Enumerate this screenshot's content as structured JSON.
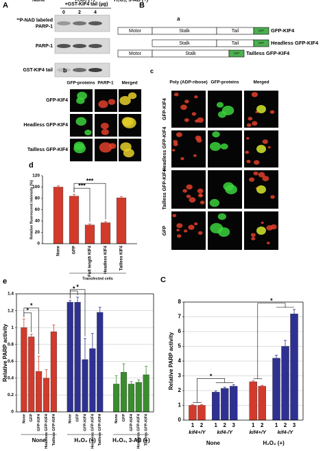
{
  "panels": {
    "A": {
      "label": "A",
      "header": "+GST-KIF4 tail (μg)",
      "doses": [
        "0",
        "2",
        "4"
      ],
      "rows": [
        [
          "³²P-NAD labeled",
          "PARP-1"
        ],
        [
          "PARP-1"
        ],
        [
          "GST-KIF4 tail"
        ]
      ]
    },
    "B": {
      "label": "B",
      "sub": "a",
      "constructs": [
        {
          "domains": [
            "Motor",
            "Stalk",
            "Tail",
            "GFP"
          ],
          "name": "GFP-KIF4"
        },
        {
          "domains": [
            "Stalk",
            "Tail",
            "GFP"
          ],
          "name": "Headless GFP-KIF4"
        },
        {
          "domains": [
            "Motor",
            "Stalk",
            "GFP"
          ],
          "name": "Tailless GFP-KIF4"
        }
      ]
    },
    "b": {
      "label": "b",
      "columns": [
        "GFP-proteins",
        "PARP-1",
        "Merged"
      ],
      "rows": [
        "GFP-KIF4",
        "Headless GFP-KIF4",
        "Tailless GFP-KIF4"
      ]
    },
    "c": {
      "label": "c",
      "columns": [
        "Poly (ADP-ribose)",
        "GFP-proteins",
        "Merged"
      ],
      "rows": [
        "GFP-KIF4",
        "Headless GFP-KIF4",
        "Tailless GFP-KIF4",
        "GFP"
      ]
    }
  },
  "chart_data": [
    {
      "type": "bar",
      "label": "d",
      "ylabel": "Relative fluorescent intensity (%)",
      "ylim": [
        0,
        120
      ],
      "yticks": [
        0,
        20,
        40,
        60,
        80,
        100,
        120
      ],
      "grid": false,
      "groups": [
        {
          "color": "#d23a2b",
          "categories": [
            "None",
            "GFP",
            "Full length KIF4",
            "Headless KIF4",
            "Tailless KIF4"
          ],
          "values": [
            100,
            84,
            33,
            37,
            81
          ],
          "errors": [
            2,
            3,
            2,
            2,
            2
          ]
        }
      ],
      "bracket": {
        "label": "Transfected cells",
        "from": 1,
        "to": 4
      },
      "significance": [
        {
          "text": "***",
          "from": [
            1,
            1
          ],
          "to": [
            2,
            2
          ]
        },
        {
          "text": "***",
          "from": [
            1,
            1
          ],
          "to": [
            3,
            3
          ]
        }
      ]
    },
    {
      "type": "bar",
      "label": "e",
      "ylabel": "Relative PARP activity",
      "ylim": [
        0,
        1.4
      ],
      "yticks": [
        0,
        0.2,
        0.4,
        0.6,
        0.8,
        1,
        1.2,
        1.4
      ],
      "grid": true,
      "groups": [
        {
          "name": "None",
          "color": "#d23a2b",
          "categories": [
            "None",
            "GFP",
            "GFP-KIF4",
            "Headless GFP-KIF4",
            "Tailless GFP-KIF4"
          ],
          "values": [
            1.0,
            0.89,
            0.48,
            0.4,
            0.95
          ],
          "errors": [
            0.1,
            0.03,
            0.18,
            0.1,
            0.08
          ]
        },
        {
          "name": "H₂O₂ (+)",
          "color": "#2e3192",
          "categories": [
            "None",
            "GFP",
            "GFP-KIF4",
            "Headless GFP-KIF4",
            "Tailless GFP-KIF4"
          ],
          "values": [
            1.3,
            1.3,
            0.62,
            0.75,
            1.18
          ],
          "errors": [
            0.02,
            0.06,
            0.25,
            0.18,
            0.06
          ]
        },
        {
          "name": "H₂O₂, 3-AB (+)",
          "color": "#3a8d2e",
          "categories": [
            "None",
            "GFP",
            "GFP-KIF4",
            "Headless GFP-KIF4",
            "Tailless GFP-KIF4"
          ],
          "values": [
            0.33,
            0.47,
            0.33,
            0.35,
            0.44
          ],
          "errors": [
            0.1,
            0.1,
            0.03,
            0.03,
            0.1
          ]
        }
      ],
      "significance": [
        {
          "text": "*",
          "from": [
            0,
            0
          ],
          "to": [
            1,
            1
          ]
        },
        {
          "text": "*",
          "from": [
            0,
            0
          ],
          "to": [
            2,
            2
          ]
        },
        {
          "text": "*",
          "from": [
            5,
            5
          ],
          "to": [
            6,
            6
          ]
        },
        {
          "text": "*",
          "from": [
            5,
            5
          ],
          "to": [
            7,
            7
          ]
        }
      ]
    },
    {
      "type": "bar",
      "label": "C",
      "ylabel": "Relative PARP activity",
      "ylim": [
        0,
        8
      ],
      "yticks": [
        0,
        1,
        2,
        3,
        4,
        5,
        6,
        7,
        8
      ],
      "grid": true,
      "groups": [
        {
          "name": "None",
          "subgroups": [
            {
              "name": "kif4+/Y",
              "color": "#d23a2b",
              "categories": [
                "1",
                "2"
              ],
              "values": [
                1.0,
                1.0
              ],
              "errors": [
                0.05,
                0.05
              ]
            },
            {
              "name": "kif4-/Y",
              "color": "#2e3192",
              "categories": [
                "1",
                "2",
                "3"
              ],
              "values": [
                1.9,
                2.15,
                2.3
              ],
              "errors": [
                0.08,
                0.08,
                0.1
              ]
            }
          ]
        },
        {
          "name": "H₂O₂ (+)",
          "subgroups": [
            {
              "name": "kif4+/Y",
              "color": "#d23a2b",
              "categories": [
                "1",
                "2"
              ],
              "values": [
                2.6,
                2.3
              ],
              "errors": [
                0.06,
                0.06
              ]
            },
            {
              "name": "kif4-/Y",
              "color": "#2e3192",
              "categories": [
                "1",
                "2",
                "3"
              ],
              "values": [
                4.2,
                5.0,
                7.2
              ],
              "errors": [
                0.2,
                0.4,
                0.3
              ]
            }
          ]
        }
      ],
      "significance": [
        {
          "text": "*",
          "from": [
            0,
            1
          ],
          "to": [
            2,
            4
          ]
        },
        {
          "text": "*",
          "from": [
            5,
            6
          ],
          "to": [
            7,
            9
          ]
        }
      ]
    }
  ]
}
